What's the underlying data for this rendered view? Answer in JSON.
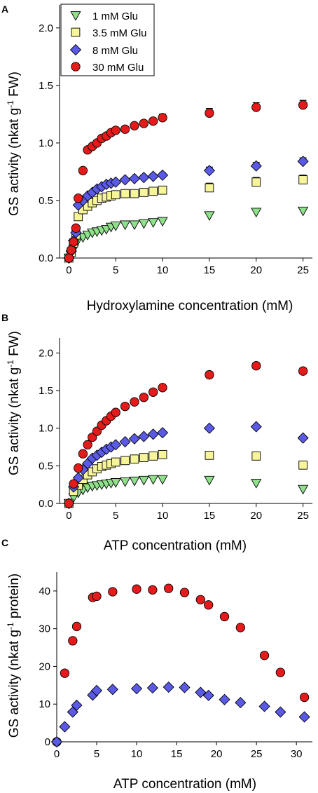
{
  "chart_data": [
    {
      "panel": "A",
      "type": "scatter",
      "xlabel": "Hydroxylamine concentration (mM)",
      "ylabel": "GS activity (nkat g",
      "ylabel_sup": "-1",
      "ylabel_end": " FW)",
      "xlim": [
        -1,
        26
      ],
      "ylim": [
        0,
        2.2
      ],
      "xticks": [
        0,
        5,
        10,
        15,
        20,
        25
      ],
      "yticks": [
        0.0,
        0.5,
        1.0,
        1.5,
        2.0
      ],
      "ytick_labels": [
        "0.0",
        "0.5",
        "1.0",
        "1.5",
        "2.0"
      ],
      "legend": {
        "position": "top-left"
      },
      "series": [
        {
          "name": "1 mM Glu",
          "marker": "triangle-down",
          "color": "#8fe08a",
          "x": [
            0,
            0.25,
            0.5,
            0.75,
            1,
            1.5,
            2,
            2.5,
            3,
            3.5,
            4,
            4.5,
            5,
            6,
            7,
            8,
            9,
            10,
            15,
            20,
            25
          ],
          "y": [
            0,
            0.03,
            0.08,
            0.13,
            0.16,
            0.18,
            0.2,
            0.22,
            0.23,
            0.24,
            0.25,
            0.27,
            0.28,
            0.29,
            0.29,
            0.3,
            0.31,
            0.32,
            0.37,
            0.4,
            0.41
          ],
          "err": [
            0,
            0,
            0,
            0,
            0,
            0,
            0,
            0,
            0,
            0,
            0,
            0,
            0,
            0,
            0,
            0.01,
            0.01,
            0.02,
            0.03,
            0.03,
            0.03
          ]
        },
        {
          "name": "3.5 mM Glu",
          "marker": "square",
          "color": "#f7f59a",
          "x": [
            0,
            0.25,
            0.5,
            0.75,
            1,
            1.5,
            2,
            2.5,
            3,
            3.5,
            4,
            4.5,
            5,
            6,
            7,
            8,
            9,
            10,
            15,
            20,
            25
          ],
          "y": [
            0,
            0.05,
            0.13,
            0.2,
            0.36,
            0.42,
            0.45,
            0.48,
            0.5,
            0.52,
            0.53,
            0.54,
            0.55,
            0.56,
            0.56,
            0.57,
            0.58,
            0.59,
            0.61,
            0.66,
            0.68
          ],
          "err": [
            0,
            0,
            0,
            0,
            0.02,
            0.02,
            0.02,
            0.02,
            0.02,
            0.02,
            0.02,
            0.02,
            0.02,
            0.02,
            0.02,
            0.02,
            0.02,
            0.03,
            0.04,
            0.04,
            0.04
          ]
        },
        {
          "name": "8 mM Glu",
          "marker": "diamond",
          "color": "#5a5ae6",
          "x": [
            0,
            0.25,
            0.5,
            0.75,
            1,
            1.5,
            2,
            2.5,
            3,
            3.5,
            4,
            4.5,
            5,
            6,
            7,
            8,
            9,
            10,
            15,
            20,
            25
          ],
          "y": [
            0,
            0.06,
            0.15,
            0.22,
            0.46,
            0.5,
            0.54,
            0.57,
            0.6,
            0.62,
            0.64,
            0.65,
            0.66,
            0.68,
            0.69,
            0.7,
            0.71,
            0.72,
            0.76,
            0.8,
            0.84
          ],
          "err": [
            0,
            0,
            0,
            0,
            0,
            0,
            0,
            0,
            0,
            0,
            0,
            0,
            0.01,
            0.01,
            0.01,
            0.02,
            0.02,
            0.02,
            0.03,
            0.03,
            0.03
          ]
        },
        {
          "name": "30 mM Glu",
          "marker": "circle",
          "color": "#e51a1a",
          "x": [
            0,
            0.25,
            0.5,
            0.75,
            1,
            1.5,
            2,
            2.5,
            3,
            3.5,
            4,
            4.5,
            5,
            6,
            7,
            8,
            9,
            10,
            15,
            20,
            25
          ],
          "y": [
            0,
            0.07,
            0.14,
            0.26,
            0.52,
            0.76,
            0.94,
            0.97,
            1.0,
            1.04,
            1.06,
            1.09,
            1.11,
            1.12,
            1.15,
            1.17,
            1.19,
            1.22,
            1.26,
            1.31,
            1.33
          ],
          "err": [
            0,
            0,
            0,
            0,
            0,
            0,
            0.01,
            0.01,
            0.01,
            0.01,
            0.01,
            0.01,
            0.01,
            0.02,
            0.02,
            0.02,
            0.02,
            0.03,
            0.04,
            0.04,
            0.04
          ]
        }
      ]
    },
    {
      "panel": "B",
      "type": "scatter",
      "xlabel": "ATP concentration (mM)",
      "ylabel": "GS activity (nkat g",
      "ylabel_sup": "-1",
      "ylabel_end": " FW)",
      "xlim": [
        -1,
        26
      ],
      "ylim": [
        0,
        2.2
      ],
      "xticks": [
        0,
        5,
        10,
        15,
        20,
        25
      ],
      "yticks": [
        0.0,
        0.5,
        1.0,
        1.5,
        2.0
      ],
      "ytick_labels": [
        "0.0",
        "0.5",
        "1.0",
        "1.5",
        "2.0"
      ],
      "series": [
        {
          "name": "1 mM Glu",
          "marker": "triangle-down",
          "color": "#8fe08a",
          "x": [
            0,
            0.5,
            1,
            1.5,
            2,
            2.5,
            3,
            3.5,
            4,
            4.5,
            5,
            6,
            7,
            8,
            9,
            10,
            15,
            20,
            25
          ],
          "y": [
            0,
            0.08,
            0.14,
            0.18,
            0.21,
            0.23,
            0.24,
            0.25,
            0.26,
            0.27,
            0.28,
            0.29,
            0.3,
            0.31,
            0.32,
            0.32,
            0.31,
            0.27,
            0.19
          ],
          "err": [
            0,
            0,
            0,
            0,
            0,
            0,
            0,
            0,
            0,
            0,
            0,
            0,
            0,
            0,
            0,
            0.02,
            0.03,
            0.03,
            0.03
          ]
        },
        {
          "name": "3.5 mM Glu",
          "marker": "square",
          "color": "#f7f59a",
          "x": [
            0,
            0.5,
            1,
            1.5,
            2,
            2.5,
            3,
            3.5,
            4,
            4.5,
            5,
            6,
            7,
            8,
            9,
            10,
            15,
            20,
            25
          ],
          "y": [
            0,
            0.16,
            0.24,
            0.32,
            0.38,
            0.42,
            0.46,
            0.49,
            0.51,
            0.53,
            0.55,
            0.57,
            0.59,
            0.61,
            0.63,
            0.65,
            0.64,
            0.63,
            0.51
          ],
          "err": [
            0,
            0,
            0,
            0,
            0,
            0,
            0,
            0,
            0.02,
            0.02,
            0.02,
            0.02,
            0.02,
            0.03,
            0.03,
            0.04,
            0.05,
            0.05,
            0.05
          ]
        },
        {
          "name": "8 mM Glu",
          "marker": "diamond",
          "color": "#5a5ae6",
          "x": [
            0,
            0.5,
            1,
            1.5,
            2,
            2.5,
            3,
            3.5,
            4,
            4.5,
            5,
            6,
            7,
            8,
            9,
            10,
            15,
            20,
            25
          ],
          "y": [
            0,
            0.22,
            0.34,
            0.45,
            0.53,
            0.6,
            0.64,
            0.68,
            0.72,
            0.75,
            0.78,
            0.82,
            0.86,
            0.89,
            0.92,
            0.94,
            1.0,
            1.02,
            0.87
          ],
          "err": [
            0,
            0,
            0,
            0,
            0,
            0,
            0,
            0,
            0,
            0,
            0,
            0.01,
            0.01,
            0.02,
            0.02,
            0.02,
            0.02,
            0.02,
            0.02
          ]
        },
        {
          "name": "30 mM Glu",
          "marker": "circle",
          "color": "#e51a1a",
          "x": [
            0,
            0.5,
            1,
            1.5,
            2,
            2.5,
            3,
            3.5,
            4,
            4.5,
            5,
            6,
            7,
            8,
            9,
            10,
            15,
            20,
            25
          ],
          "y": [
            0,
            0.26,
            0.47,
            0.66,
            0.78,
            0.88,
            0.96,
            1.04,
            1.1,
            1.16,
            1.21,
            1.29,
            1.35,
            1.41,
            1.48,
            1.54,
            1.71,
            1.83,
            1.76
          ],
          "err": [
            0,
            0,
            0,
            0,
            0,
            0,
            0,
            0,
            0.01,
            0.01,
            0.01,
            0.02,
            0.02,
            0.02,
            0.02,
            0.03,
            0.04,
            0.04,
            0.04
          ]
        }
      ]
    },
    {
      "panel": "C",
      "type": "scatter",
      "xlabel": "ATP concentration (mM)",
      "ylabel": "GS activity (nkat g",
      "ylabel_sup": "-1",
      "ylabel_end": " protein)",
      "xlim": [
        0,
        32
      ],
      "ylim": [
        0,
        45
      ],
      "xticks": [
        0,
        5,
        10,
        15,
        20,
        25,
        30
      ],
      "yticks": [
        0,
        10,
        20,
        30,
        40
      ],
      "ytick_labels": [
        "0",
        "10",
        "20",
        "30",
        "40"
      ],
      "series": [
        {
          "name": "30 mM Glu",
          "marker": "circle",
          "color": "#e51a1a",
          "x": [
            0,
            1,
            2,
            2.5,
            4.5,
            5,
            7,
            10,
            12,
            14,
            16,
            18,
            19,
            21,
            23,
            26,
            28,
            31
          ],
          "y": [
            0,
            18.2,
            26.8,
            30.6,
            38.3,
            38.6,
            39.8,
            40.5,
            40.3,
            40.7,
            39.6,
            37.7,
            36.3,
            33.2,
            30.3,
            22.9,
            18.4,
            11.8
          ],
          "err": []
        },
        {
          "name": "8 mM Glu",
          "marker": "diamond",
          "color": "#5a5ae6",
          "x": [
            0,
            1,
            2,
            2.5,
            4.5,
            5,
            7,
            10,
            12,
            14,
            16,
            18,
            19,
            21,
            23,
            26,
            28,
            31
          ],
          "y": [
            0,
            4.0,
            7.9,
            9.7,
            12.4,
            13.6,
            13.9,
            14.1,
            14.3,
            14.5,
            14.4,
            13.1,
            12.3,
            11.2,
            10.4,
            9.4,
            7.9,
            6.6
          ],
          "err": []
        }
      ]
    }
  ]
}
